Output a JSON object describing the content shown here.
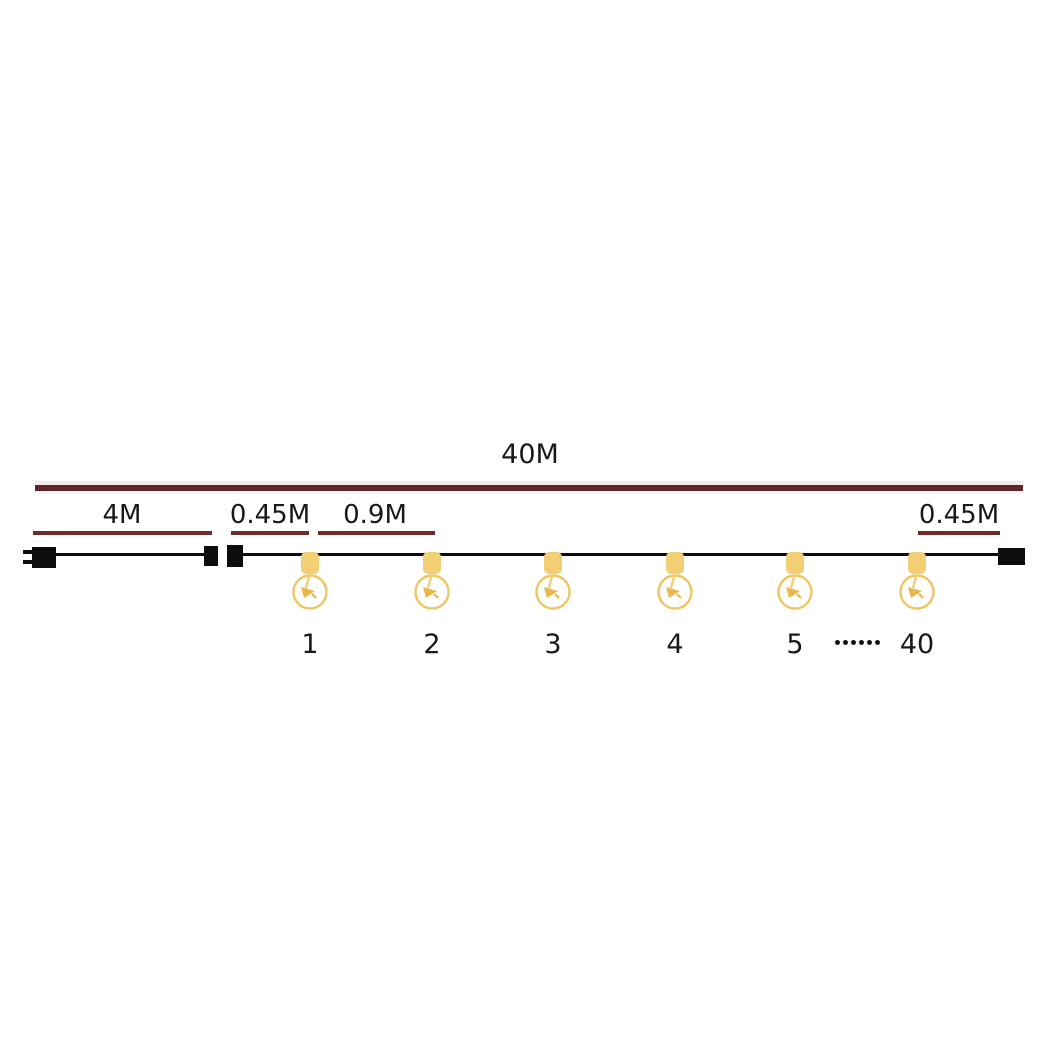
{
  "colors": {
    "background": "#ffffff",
    "measure_line_total": "#5e252a",
    "measure_line_segment": "#6f2b28",
    "wire": "#0d0d0d",
    "text": "#191919",
    "bulb_body": "#f2ce74",
    "bulb_outline": "#eec561",
    "bulb_filament": "#e9b84d"
  },
  "diagram": {
    "total_length_label": "40M",
    "segments": {
      "lead": {
        "label": "4M"
      },
      "start_gap": {
        "label": "0.45M"
      },
      "bulb_spacing": {
        "label": "0.9M"
      },
      "end_gap": {
        "label": "0.45M"
      }
    },
    "bulbs": [
      {
        "number": "1"
      },
      {
        "number": "2"
      },
      {
        "number": "3"
      },
      {
        "number": "4"
      },
      {
        "number": "5"
      },
      {
        "number": "40"
      }
    ],
    "ellipsis_dot_count": 6
  }
}
